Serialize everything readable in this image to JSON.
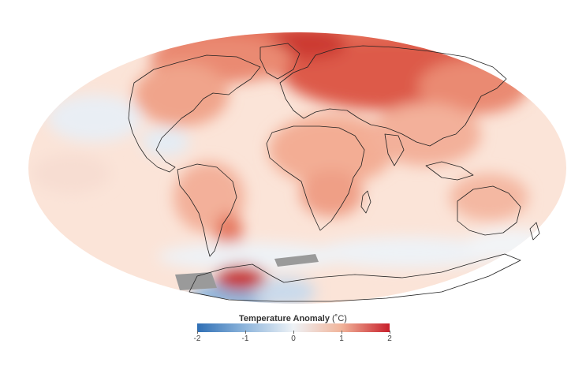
{
  "legend": {
    "title": "Temperature Anomaly",
    "unit": "(˚C)",
    "ticks": [
      "-2",
      "-1",
      "0",
      "1",
      "2"
    ],
    "min": -2,
    "max": 2,
    "colors": [
      "#2f6fb5",
      "#8fb6dc",
      "#eef2f6",
      "#f1b49a",
      "#c8202b"
    ]
  },
  "map": {
    "projection": "Mollweide",
    "ocean_base_color": "#fbe3d6",
    "land_outline_color": "#222222",
    "missing_data_color": "#9a9a9a"
  }
}
